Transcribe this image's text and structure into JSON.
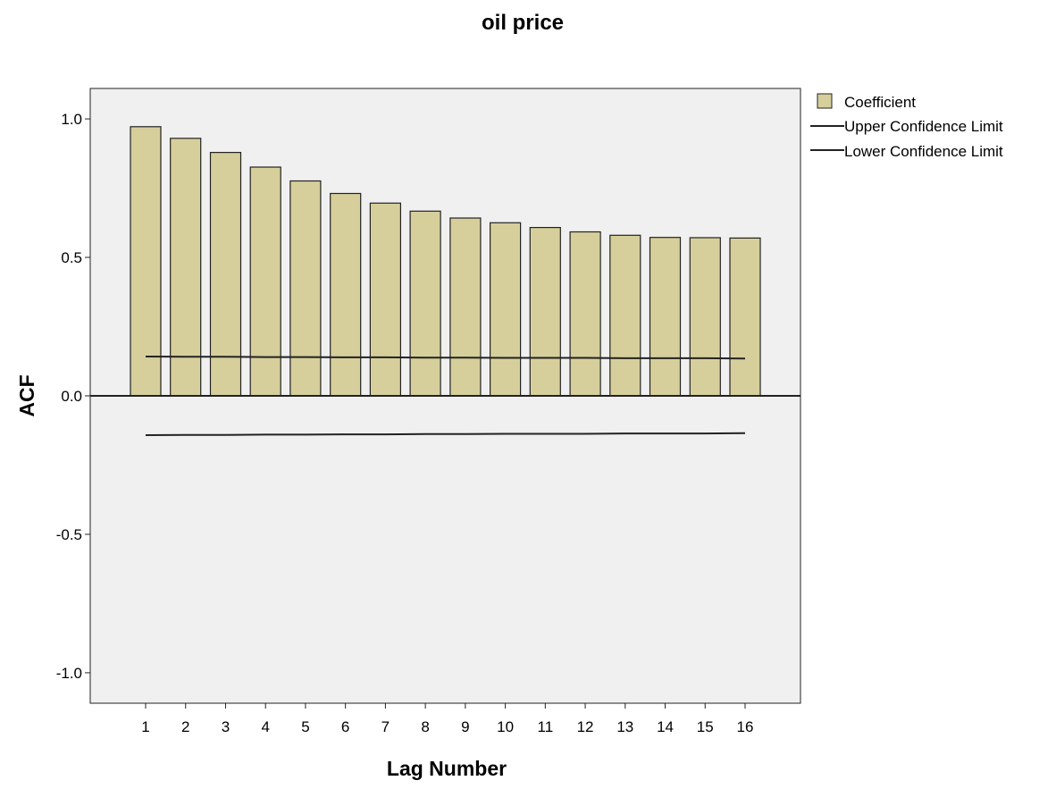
{
  "chart_data": {
    "type": "bar",
    "title": "oil price",
    "xlabel": "Lag Number",
    "ylabel": "ACF",
    "categories": [
      "1",
      "2",
      "3",
      "4",
      "5",
      "6",
      "7",
      "8",
      "9",
      "10",
      "11",
      "12",
      "13",
      "14",
      "15",
      "16"
    ],
    "series": [
      {
        "name": "Coefficient",
        "kind": "bar",
        "values": [
          0.972,
          0.93,
          0.879,
          0.826,
          0.776,
          0.731,
          0.696,
          0.667,
          0.642,
          0.625,
          0.608,
          0.592,
          0.58,
          0.572,
          0.571,
          0.57
        ]
      },
      {
        "name": "Upper Confidence Limit",
        "kind": "line",
        "values": [
          0.142,
          0.141,
          0.141,
          0.14,
          0.14,
          0.139,
          0.139,
          0.138,
          0.138,
          0.137,
          0.137,
          0.137,
          0.136,
          0.136,
          0.136,
          0.135
        ]
      },
      {
        "name": "Lower Confidence Limit",
        "kind": "line",
        "values": [
          -0.142,
          -0.141,
          -0.141,
          -0.14,
          -0.14,
          -0.139,
          -0.139,
          -0.138,
          -0.138,
          -0.137,
          -0.137,
          -0.137,
          -0.136,
          -0.136,
          -0.136,
          -0.135
        ]
      }
    ],
    "yticks": [
      -1.0,
      -0.5,
      0.0,
      0.5,
      1.0
    ],
    "ytick_labels": [
      "-1.0",
      "-0.5",
      "0.0",
      "0.5",
      "1.0"
    ],
    "ylim": [
      -1.11,
      1.11
    ],
    "grid": false,
    "legend_position": "right",
    "colors": {
      "bar_fill": "#d6cf9b",
      "bar_stroke": "#222222",
      "plot_background": "#f0f0f0",
      "line": "#222222"
    }
  }
}
